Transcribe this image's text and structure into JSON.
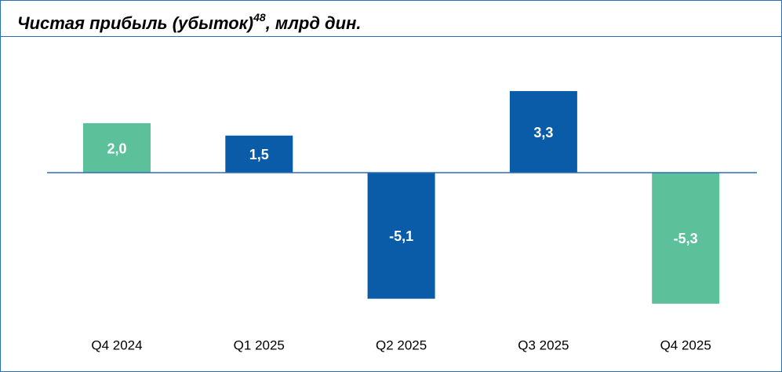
{
  "chart_data": {
    "type": "bar",
    "title": "Чистая прибыль (убыток)",
    "title_note": "48",
    "title_suffix": ", млрд дин.",
    "categories": [
      "Q4 2024",
      "Q1 2025",
      "Q2 2025",
      "Q3 2025",
      "Q4 2025"
    ],
    "values": [
      2.0,
      1.5,
      -5.1,
      3.3,
      -5.3
    ],
    "value_labels": [
      "2,0",
      "1,5",
      "-5,1",
      "3,3",
      "-5,3"
    ],
    "colors": [
      "#5cc09b",
      "#0a5ca8",
      "#0a5ca8",
      "#0a5ca8",
      "#5cc09b"
    ]
  }
}
